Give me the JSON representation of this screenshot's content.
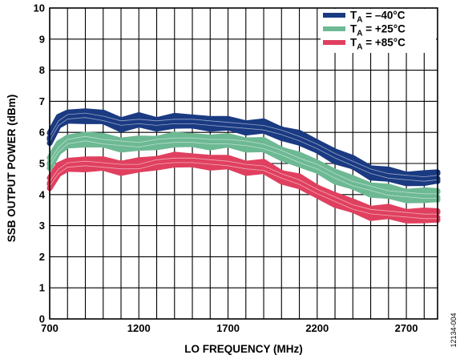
{
  "chart_data": {
    "type": "line",
    "title": "",
    "xlabel": "LO FREQUENCY (MHz)",
    "ylabel": "SSB OUTPUT POWER (dBm)",
    "xlim": [
      700,
      2875
    ],
    "ylim": [
      0,
      10
    ],
    "xticks": [
      700,
      1200,
      1700,
      2200,
      2700
    ],
    "yticks": [
      0,
      1,
      2,
      3,
      4,
      5,
      6,
      7,
      8,
      9,
      10
    ],
    "grid": true,
    "legend_position": "top-right",
    "figure_id": "12134-004",
    "series": [
      {
        "name": "T_A = –40°C",
        "legend_main": "T",
        "legend_sub": "A",
        "legend_rest": " = –40°C",
        "color": "#1a3a82",
        "x": [
          700,
          750,
          800,
          900,
          1000,
          1100,
          1200,
          1300,
          1400,
          1500,
          1600,
          1700,
          1800,
          1900,
          2000,
          2100,
          2200,
          2300,
          2400,
          2500,
          2600,
          2700,
          2800,
          2875
        ],
        "y": [
          5.8,
          6.3,
          6.5,
          6.55,
          6.45,
          6.3,
          6.35,
          6.3,
          6.35,
          6.35,
          6.3,
          6.25,
          6.2,
          6.15,
          6.0,
          5.8,
          5.55,
          5.25,
          5.0,
          4.75,
          4.6,
          4.55,
          4.5,
          4.55
        ],
        "band": 0.3
      },
      {
        "name": "T_A = +25°C",
        "legend_main": "T",
        "legend_sub": "A",
        "legend_rest": " = +25°C",
        "color": "#6db994",
        "x": [
          700,
          750,
          800,
          900,
          1000,
          1100,
          1200,
          1300,
          1400,
          1500,
          1600,
          1700,
          1800,
          1900,
          2000,
          2100,
          2200,
          2300,
          2400,
          2500,
          2600,
          2700,
          2800,
          2875
        ],
        "y": [
          5.0,
          5.45,
          5.7,
          5.8,
          5.7,
          5.65,
          5.6,
          5.7,
          5.75,
          5.75,
          5.7,
          5.7,
          5.65,
          5.55,
          5.35,
          5.1,
          4.9,
          4.6,
          4.35,
          4.2,
          4.05,
          4.0,
          3.95,
          3.95
        ],
        "band": 0.3
      },
      {
        "name": "T_A = +85°C",
        "legend_main": "T",
        "legend_sub": "A",
        "legend_rest": " = +85°C",
        "color": "#e0405f",
        "x": [
          700,
          750,
          800,
          900,
          1000,
          1100,
          1200,
          1300,
          1400,
          1500,
          1600,
          1700,
          1800,
          1900,
          2000,
          2100,
          2200,
          2300,
          2400,
          2500,
          2600,
          2700,
          2800,
          2875
        ],
        "y": [
          4.35,
          4.75,
          4.95,
          5.0,
          4.95,
          4.9,
          4.9,
          5.05,
          5.1,
          5.1,
          5.05,
          5.0,
          4.9,
          4.85,
          4.6,
          4.4,
          4.1,
          3.85,
          3.6,
          3.45,
          3.4,
          3.35,
          3.3,
          3.3
        ],
        "band": 0.3
      }
    ]
  }
}
